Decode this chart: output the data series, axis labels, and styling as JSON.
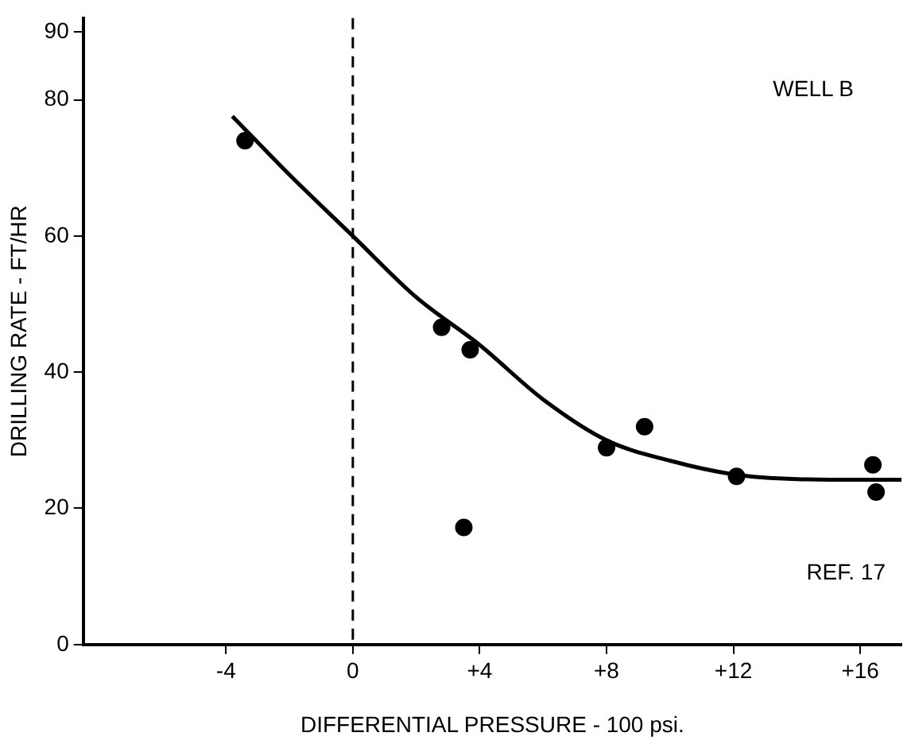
{
  "chart_data": {
    "type": "scatter",
    "xlabel": "DIFFERENTIAL PRESSURE - 100 psi.",
    "ylabel": "DRILLING RATE - FT/HR",
    "xlim": [
      -8.5,
      17.3
    ],
    "xticks": [
      -4,
      0,
      {
        "value": 4,
        "label": "+4"
      },
      {
        "value": 8,
        "label": "+8"
      },
      {
        "value": 12,
        "label": "+12"
      },
      {
        "value": 16,
        "label": "+16"
      }
    ],
    "ylim": [
      0,
      92
    ],
    "yticks": [
      0,
      20,
      40,
      60,
      80,
      90
    ],
    "grid": false,
    "legend": false,
    "marker": "circle",
    "series": [
      {
        "color": "#000000",
        "x": [
          -3.4,
          2.8,
          3.7,
          3.5,
          8.0,
          9.2,
          12.1,
          16.4,
          16.5
        ],
        "values": [
          74,
          46.6,
          43.3,
          17.2,
          28.9,
          32,
          24.7,
          26.4,
          22.4
        ]
      },
      {
        "type": "line",
        "color": "#000000",
        "marker": "none",
        "line_style": "solid",
        "x": [
          -3.8,
          -2,
          0,
          2,
          4,
          6,
          8,
          10,
          12,
          14,
          16,
          17.3
        ],
        "values": [
          77.6,
          69,
          60,
          51,
          44,
          36,
          30,
          27,
          25,
          24.3,
          24.2,
          24.2
        ]
      }
    ],
    "ref_lines": [
      {
        "axis": "x",
        "value": 0,
        "color": "#000000",
        "line_style": "dashed"
      }
    ],
    "annotations": [
      {
        "text": "WELL B"
      },
      {
        "text": "REF. 17"
      }
    ]
  }
}
